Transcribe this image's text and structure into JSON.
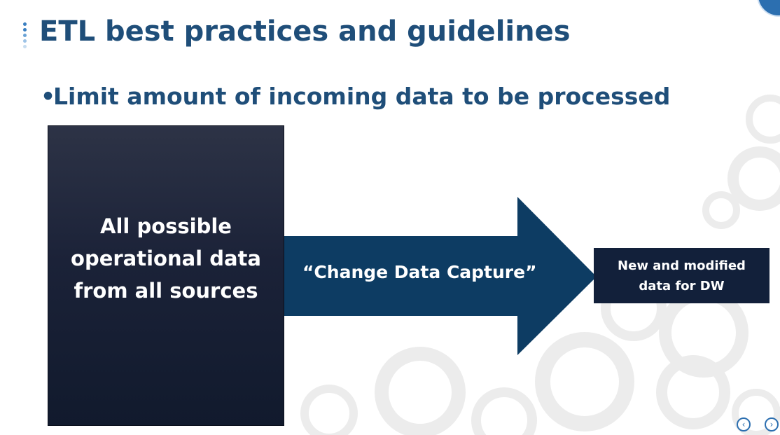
{
  "slide": {
    "title": "ETL best practices and guidelines",
    "bullet": "Limit amount of incoming data to be processed"
  },
  "diagram": {
    "source_box": {
      "lines": [
        "All possible",
        "operational data",
        "from all sources"
      ]
    },
    "arrow_label": "“Change Data Capture”",
    "target_box": {
      "lines": [
        "New and modified",
        "data for DW"
      ]
    }
  },
  "navigation": {
    "prev_icon": "chevron-left-icon",
    "next_icon": "chevron-right-icon"
  },
  "colors": {
    "title": "#1f4e79",
    "arrow": "#0d3c63",
    "source_box": "#1b2238",
    "target_box": "#12203a",
    "accent": "#2c6fb0"
  }
}
